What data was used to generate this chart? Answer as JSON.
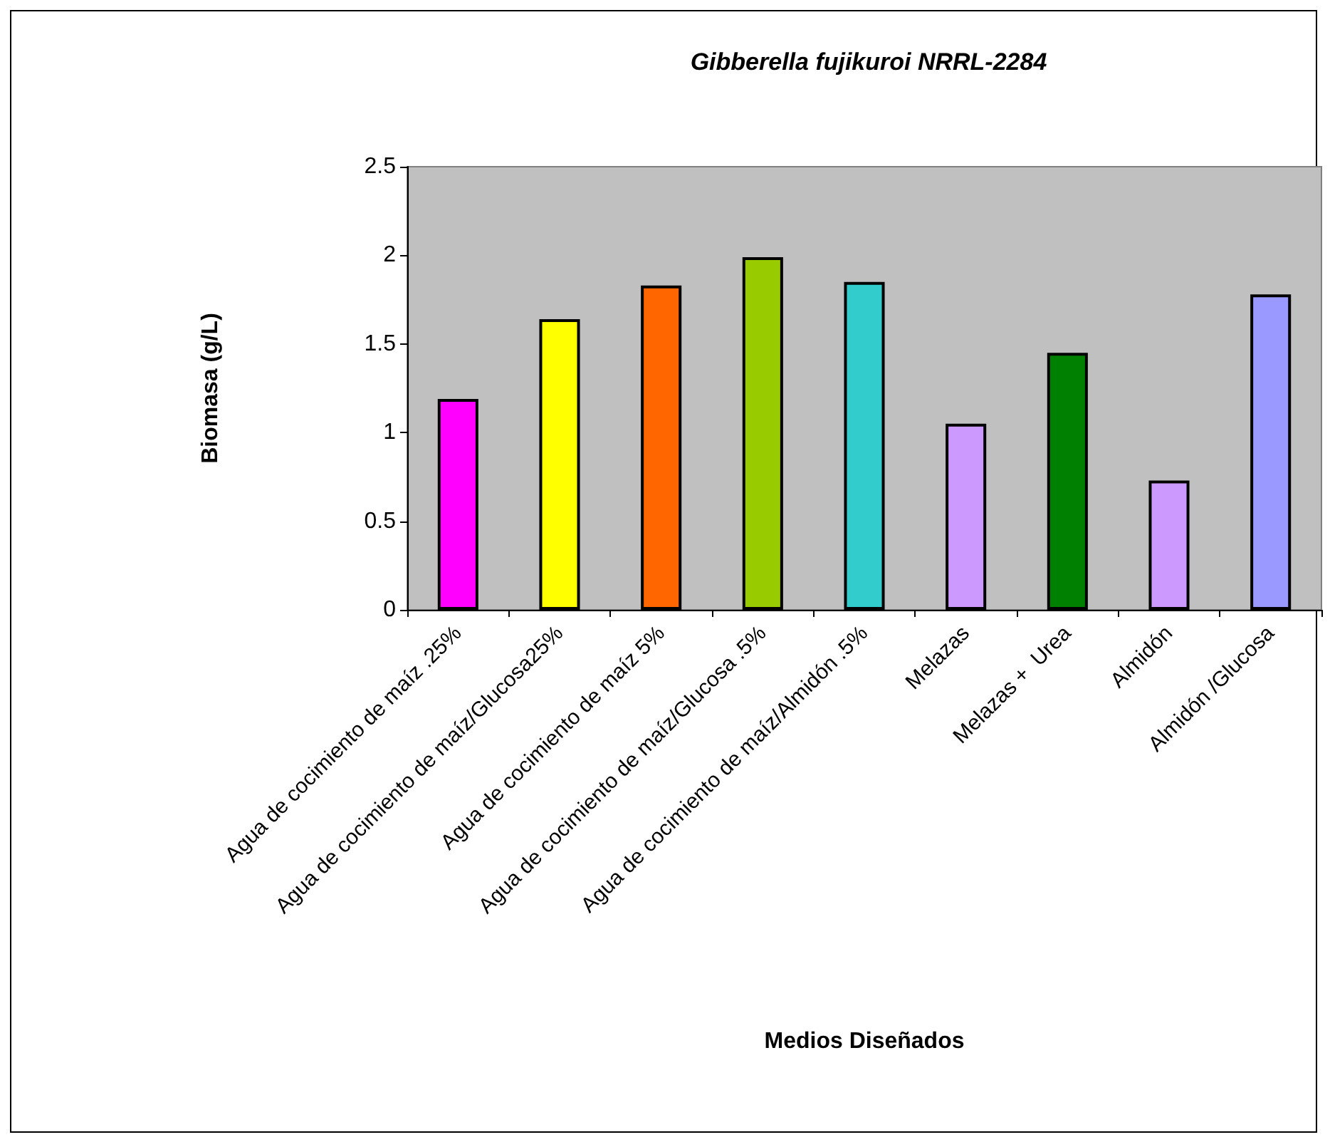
{
  "chart_data": {
    "type": "bar",
    "title": "Gibberella fujikuroi NRRL-2284",
    "xlabel": "Medios Diseñados",
    "ylabel": "Biomasa (g/L)",
    "categories": [
      "Agua de cocimiento de maíz .25%",
      "Agua de cocimiento de maíz/Glucosa25%",
      "Agua de cocimiento de maíz 5%",
      "Agua de cocimiento de maíz/Glucosa .5%",
      "Agua de cocimiento de maíz/Almidón .5%",
      "Melazas",
      "Melazas +  Urea",
      "Almidón",
      "Almidón /Glucosa"
    ],
    "values": [
      1.19,
      1.64,
      1.83,
      1.99,
      1.85,
      1.05,
      1.45,
      0.73,
      1.78
    ],
    "colors": [
      "#ff00ff",
      "#ffff00",
      "#ff6600",
      "#99cc00",
      "#33cccc",
      "#cc99ff",
      "#008000",
      "#cc99ff",
      "#9999ff"
    ],
    "ylim": [
      0,
      2.5
    ],
    "yticks": [
      0,
      0.5,
      1,
      1.5,
      2,
      2.5
    ],
    "grid": false
  }
}
